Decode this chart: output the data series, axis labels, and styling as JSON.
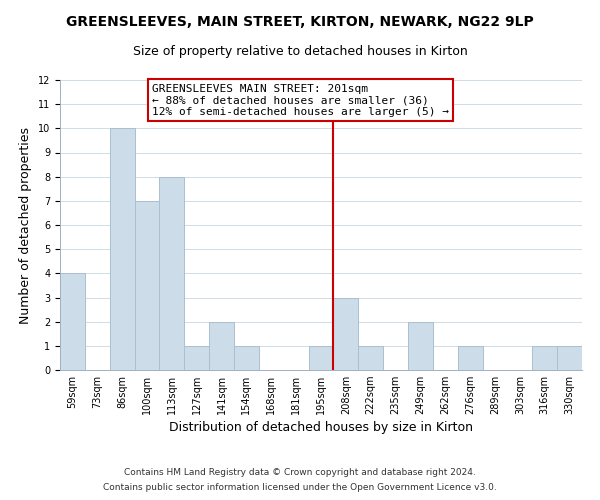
{
  "title": "GREENSLEEVES, MAIN STREET, KIRTON, NEWARK, NG22 9LP",
  "subtitle": "Size of property relative to detached houses in Kirton",
  "xlabel": "Distribution of detached houses by size in Kirton",
  "ylabel": "Number of detached properties",
  "bar_labels": [
    "59sqm",
    "73sqm",
    "86sqm",
    "100sqm",
    "113sqm",
    "127sqm",
    "141sqm",
    "154sqm",
    "168sqm",
    "181sqm",
    "195sqm",
    "208sqm",
    "222sqm",
    "235sqm",
    "249sqm",
    "262sqm",
    "276sqm",
    "289sqm",
    "303sqm",
    "316sqm",
    "330sqm"
  ],
  "bar_values": [
    4,
    0,
    10,
    7,
    8,
    1,
    2,
    1,
    0,
    0,
    1,
    3,
    1,
    0,
    2,
    0,
    1,
    0,
    0,
    1,
    1
  ],
  "bar_color": "#ccdce8",
  "bar_edge_color": "#aabfd0",
  "ylim": [
    0,
    12
  ],
  "yticks": [
    0,
    1,
    2,
    3,
    4,
    5,
    6,
    7,
    8,
    9,
    10,
    11,
    12
  ],
  "vline_x_index": 10.5,
  "vline_color": "#cc0000",
  "annotation_box_text": "GREENSLEEVES MAIN STREET: 201sqm\n← 88% of detached houses are smaller (36)\n12% of semi-detached houses are larger (5) →",
  "footer_line1": "Contains HM Land Registry data © Crown copyright and database right 2024.",
  "footer_line2": "Contains public sector information licensed under the Open Government Licence v3.0.",
  "title_fontsize": 10,
  "subtitle_fontsize": 9,
  "label_fontsize": 9,
  "tick_fontsize": 7,
  "annotation_fontsize": 8,
  "footer_fontsize": 6.5,
  "background_color": "#ffffff",
  "grid_color": "#d0dce6"
}
